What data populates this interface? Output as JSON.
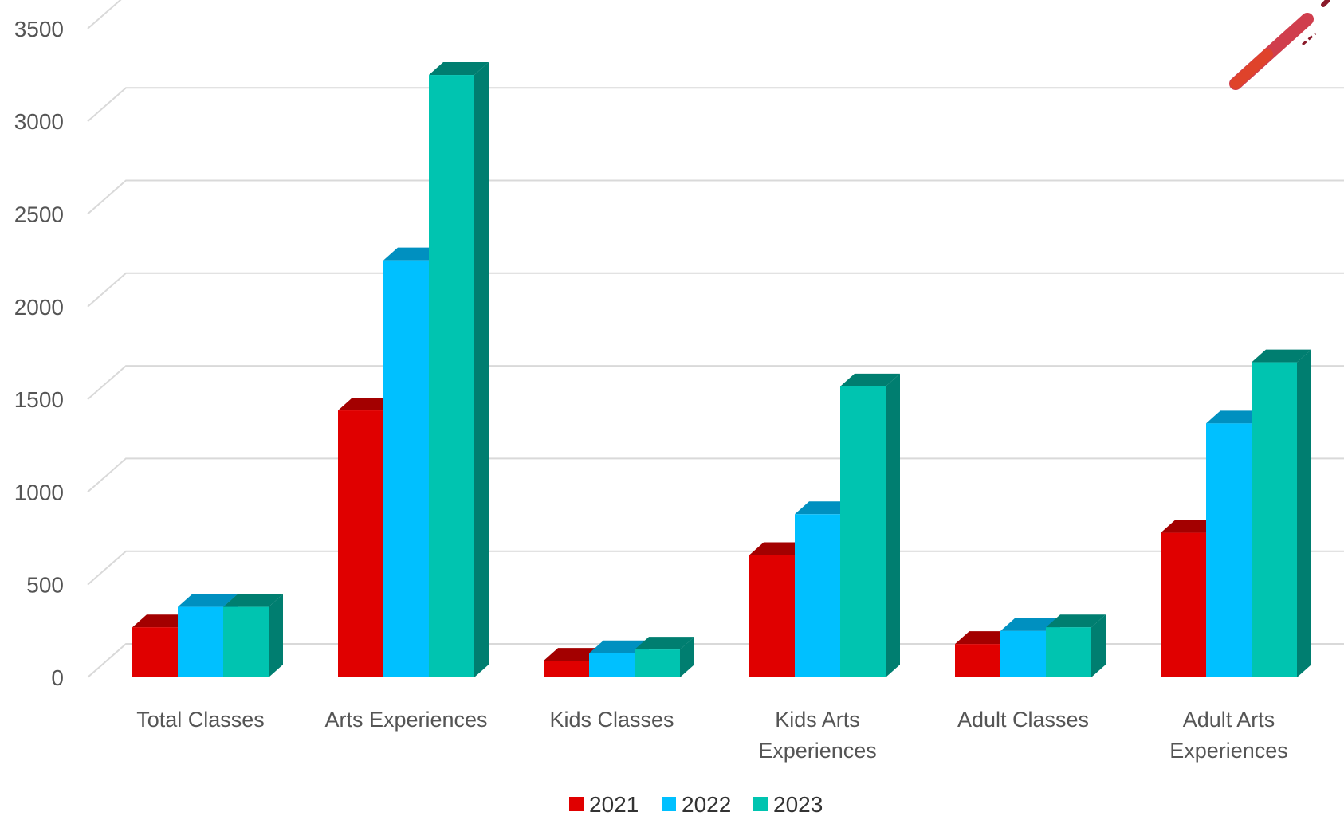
{
  "chart_data": {
    "type": "bar",
    "categories": [
      [
        "Total Classes"
      ],
      [
        "Arts Experiences"
      ],
      [
        "Kids Classes"
      ],
      [
        "Kids Arts",
        "Experiences"
      ],
      [
        "Adult Classes"
      ],
      [
        "Adult Arts",
        "Experiences"
      ]
    ],
    "series": [
      {
        "name": "2021",
        "values": [
          270,
          1440,
          90,
          660,
          180,
          780
        ],
        "color": "#e00000",
        "side_color": "#a30000"
      },
      {
        "name": "2022",
        "values": [
          380,
          2250,
          130,
          880,
          250,
          1370
        ],
        "color": "#00c0ff",
        "side_color": "#0090c0"
      },
      {
        "name": "2023",
        "values": [
          380,
          3250,
          150,
          1570,
          270,
          1700
        ],
        "color": "#00c4b0",
        "side_color": "#007e70"
      }
    ],
    "y_ticks": [
      0,
      500,
      1000,
      1500,
      2000,
      2500,
      3000,
      3500
    ],
    "ylim": [
      0,
      3600
    ],
    "grid": true,
    "legend_position": "bottom-center",
    "title": "",
    "xlabel": "",
    "ylabel": ""
  },
  "decoration": {
    "name": "brush-stroke-icon"
  }
}
